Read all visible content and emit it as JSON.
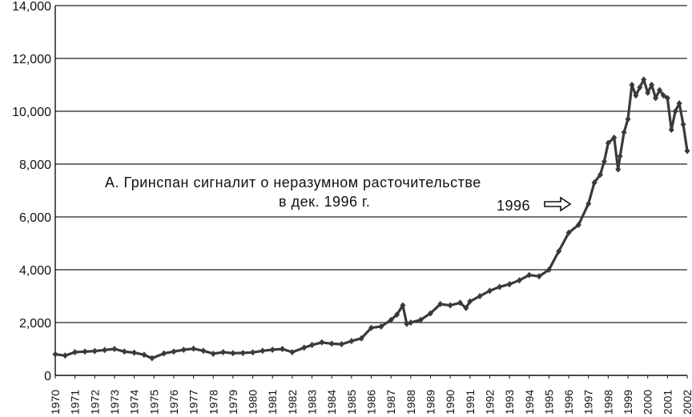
{
  "chart_data": {
    "type": "line",
    "title": "",
    "xlabel": "",
    "ylabel": "",
    "xlim": [
      1970,
      2002
    ],
    "ylim": [
      0,
      14000
    ],
    "grid": "horizontal",
    "y_ticks": [
      0,
      2000,
      4000,
      6000,
      8000,
      10000,
      12000,
      14000
    ],
    "y_tick_labels": [
      "0",
      "2,000",
      "4,000",
      "6,000",
      "8,000",
      "10,000",
      "12,000",
      "14,000"
    ],
    "x_tick_labels": [
      "1970",
      "1971",
      "1972",
      "1973",
      "1974",
      "1975",
      "1976",
      "1977",
      "1978",
      "1979",
      "1980",
      "1981",
      "1982",
      "1983",
      "1984",
      "1985",
      "1986",
      "1987",
      "1988",
      "1989",
      "1990",
      "1991",
      "1992",
      "1993",
      "1994",
      "1995",
      "1996",
      "1997",
      "1998",
      "1999",
      "2000",
      "2001",
      "2002"
    ],
    "series": [
      {
        "color": "#3a3a3a",
        "x": [
          1970.0,
          1970.5,
          1971.0,
          1971.5,
          1972.0,
          1972.5,
          1973.0,
          1973.5,
          1974.0,
          1974.5,
          1974.9,
          1975.5,
          1976.0,
          1976.5,
          1977.0,
          1977.5,
          1978.0,
          1978.5,
          1979.0,
          1979.5,
          1980.0,
          1980.5,
          1981.0,
          1981.5,
          1982.0,
          1982.6,
          1983.0,
          1983.5,
          1984.0,
          1984.5,
          1985.0,
          1985.5,
          1986.0,
          1986.5,
          1987.0,
          1987.3,
          1987.6,
          1987.8,
          1988.0,
          1988.5,
          1989.0,
          1989.5,
          1990.0,
          1990.5,
          1990.8,
          1991.0,
          1991.5,
          1992.0,
          1992.5,
          1993.0,
          1993.5,
          1994.0,
          1994.5,
          1995.0,
          1995.5,
          1996.0,
          1996.5,
          1997.0,
          1997.3,
          1997.6,
          1997.8,
          1998.0,
          1998.3,
          1998.5,
          1998.6,
          1998.8,
          1999.0,
          1999.2,
          1999.4,
          1999.6,
          1999.8,
          2000.0,
          2000.2,
          2000.4,
          2000.6,
          2000.8,
          2001.0,
          2001.2,
          2001.4,
          2001.6,
          2001.8,
          2002.0
        ],
        "y": [
          800,
          750,
          880,
          900,
          920,
          960,
          1000,
          900,
          860,
          780,
          650,
          830,
          900,
          970,
          1010,
          930,
          820,
          880,
          840,
          850,
          870,
          930,
          970,
          1000,
          880,
          1050,
          1150,
          1250,
          1200,
          1180,
          1300,
          1400,
          1800,
          1850,
          2100,
          2300,
          2650,
          1950,
          2000,
          2100,
          2350,
          2700,
          2650,
          2750,
          2550,
          2800,
          3000,
          3200,
          3350,
          3450,
          3600,
          3800,
          3750,
          4000,
          4700,
          5400,
          5700,
          6500,
          7300,
          7600,
          8100,
          8800,
          9000,
          7800,
          8300,
          9200,
          9700,
          11000,
          10600,
          10900,
          11200,
          10700,
          11000,
          10500,
          10800,
          10600,
          10500,
          9300,
          10000,
          10300,
          9500,
          8500
        ]
      }
    ],
    "annotations": [
      {
        "text": "А. Гринспан сигналит о неразумном расточительстве",
        "line": 1
      },
      {
        "text": "в дек. 1996 г.",
        "line": 2
      },
      {
        "text": "1996",
        "x": 1996.9,
        "y": 6400,
        "arrow": "right"
      }
    ]
  }
}
